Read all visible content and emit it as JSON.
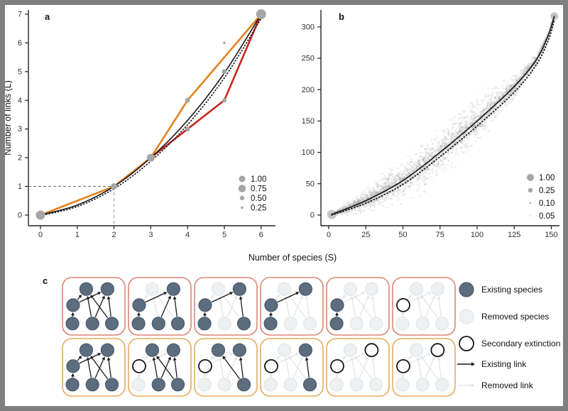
{
  "frame": {
    "border_color": "#7f7f7f",
    "background": "#ffffff"
  },
  "axes": {
    "shared_xlabel": "Number of species (S)"
  },
  "chart_data": [
    {
      "id": "a",
      "type": "line",
      "panel_label": "a",
      "xlabel": "Number of species (S)",
      "ylabel": "Number of links (L)",
      "xlim": [
        0,
        6.3
      ],
      "ylim": [
        0,
        7.2
      ],
      "xticks": [
        0,
        1,
        2,
        3,
        4,
        5,
        6
      ],
      "yticks": [
        0,
        1,
        2,
        3,
        4,
        5,
        6,
        7
      ],
      "grid": false,
      "legend_position": "bottom-right",
      "series": [
        {
          "name": "black-solid-curve",
          "style": "solid",
          "color": "#1b1b1b",
          "width": 1.6,
          "smooth": true,
          "points": [
            [
              0,
              0
            ],
            [
              1,
              0.35
            ],
            [
              2,
              1
            ],
            [
              3,
              2
            ],
            [
              4,
              3.3
            ],
            [
              5,
              4.95
            ],
            [
              6,
              7
            ]
          ]
        },
        {
          "name": "black-dotted-curve",
          "style": "dotted",
          "color": "#1b1b1b",
          "width": 1.8,
          "smooth": true,
          "points": [
            [
              0,
              -0.02
            ],
            [
              1,
              0.3
            ],
            [
              2,
              0.92
            ],
            [
              3,
              1.88
            ],
            [
              4,
              3.15
            ],
            [
              5,
              4.78
            ],
            [
              6,
              6.85
            ]
          ]
        },
        {
          "name": "orange-trajectory",
          "style": "solid",
          "color": "#e5821f",
          "width": 2.6,
          "smooth": false,
          "points": [
            [
              0,
              0
            ],
            [
              2,
              1
            ],
            [
              3,
              2
            ],
            [
              4,
              4
            ],
            [
              6,
              7
            ]
          ]
        },
        {
          "name": "red-trajectory",
          "style": "solid",
          "color": "#c9261d",
          "width": 2.6,
          "smooth": false,
          "points": [
            [
              3,
              2
            ],
            [
              4,
              3
            ],
            [
              5,
              4
            ],
            [
              6,
              7
            ]
          ]
        }
      ],
      "guides": [
        {
          "orientation": "horizontal",
          "from": [
            0,
            1
          ],
          "to": [
            2,
            1
          ]
        },
        {
          "orientation": "vertical",
          "from": [
            2,
            1
          ],
          "to": [
            2,
            0
          ]
        }
      ],
      "size_dots": {
        "color": "#a6a6a6",
        "points": [
          [
            0,
            0,
            13
          ],
          [
            2,
            1,
            9
          ],
          [
            3,
            2,
            11
          ],
          [
            4,
            3,
            7
          ],
          [
            4,
            4,
            7
          ],
          [
            5,
            4,
            6
          ],
          [
            5,
            5,
            7
          ],
          [
            5,
            6,
            3.5
          ],
          [
            6,
            7,
            14
          ]
        ]
      },
      "legend": {
        "dot_color": "#a6a6a6",
        "entries": [
          {
            "label": "1.00",
            "d": 9
          },
          {
            "label": "0.75",
            "d": 10.5
          },
          {
            "label": "0.50",
            "d": 6.5
          },
          {
            "label": "0.25",
            "d": 3.5
          }
        ]
      }
    },
    {
      "id": "b",
      "type": "scatter",
      "panel_label": "b",
      "xlabel": "Number of species (S)",
      "ylabel": "",
      "xlim": [
        0,
        155
      ],
      "ylim": [
        0,
        330
      ],
      "xticks": [
        0,
        25,
        50,
        75,
        100,
        125,
        150
      ],
      "yticks": [
        0,
        50,
        100,
        150,
        200,
        250,
        300
      ],
      "grid": false,
      "legend_position": "bottom-right",
      "series": [
        {
          "name": "black-solid-curve",
          "style": "solid",
          "color": "#1b1b1b",
          "width": 1.7,
          "smooth": true,
          "points": [
            [
              2,
              1
            ],
            [
              25,
              23
            ],
            [
              50,
              55
            ],
            [
              75,
              100
            ],
            [
              100,
              150
            ],
            [
              125,
              205
            ],
            [
              140,
              248
            ],
            [
              148,
              287
            ],
            [
              152,
              317
            ]
          ]
        },
        {
          "name": "black-dotted-curve",
          "style": "dotted",
          "color": "#1b1b1b",
          "width": 1.9,
          "smooth": true,
          "points": [
            [
              2,
              0
            ],
            [
              25,
              19
            ],
            [
              50,
              49
            ],
            [
              75,
              93
            ],
            [
              100,
              142
            ],
            [
              125,
              196
            ],
            [
              140,
              240
            ],
            [
              148,
              279
            ],
            [
              152,
              310
            ]
          ]
        }
      ],
      "cloud": {
        "description": "band of simulated extinction trajectories",
        "color": "#b9b9b9",
        "x_range": [
          2,
          152
        ],
        "max_half_width": 48
      },
      "endpoint_dots": {
        "color": "#c6c6c6",
        "points": [
          [
            2,
            1,
            13
          ],
          [
            152,
            317,
            11
          ]
        ]
      },
      "legend": {
        "dot_color": "#a6a6a6",
        "entries": [
          {
            "label": "1.00",
            "d": 10
          },
          {
            "label": "0.25",
            "d": 6.5
          },
          {
            "label": "0.10",
            "d": 2.5
          },
          {
            "label": "0.05",
            "d": 1.5
          }
        ]
      }
    }
  ],
  "panel_c": {
    "panel_label": "c",
    "node_ids": [
      "T1",
      "T2",
      "M",
      "B1",
      "B2",
      "B3"
    ],
    "links": [
      [
        "B1",
        "M"
      ],
      [
        "M",
        "T1"
      ],
      [
        "M",
        "T2"
      ],
      [
        "B2",
        "T1"
      ],
      [
        "B2",
        "T2"
      ],
      [
        "B3",
        "T1"
      ],
      [
        "B3",
        "T2"
      ]
    ],
    "rows": [
      {
        "border_color": "#dc8576",
        "boxes": [
          {
            "removed": [],
            "secondary": [],
            "active_links": [
              0,
              1,
              2,
              3,
              4,
              5,
              6
            ]
          },
          {
            "removed": [
              "T1"
            ],
            "secondary": [],
            "active_links": [
              0,
              2,
              4,
              6
            ]
          },
          {
            "removed": [
              "T1",
              "B2"
            ],
            "secondary": [],
            "active_links": [
              0,
              2,
              6
            ]
          },
          {
            "removed": [
              "T1",
              "B2",
              "B3"
            ],
            "secondary": [],
            "active_links": [
              0,
              2
            ]
          },
          {
            "removed": [
              "T1",
              "B2",
              "B3",
              "T2"
            ],
            "secondary": [],
            "active_links": [
              0
            ]
          },
          {
            "removed": [
              "T1",
              "B2",
              "B3",
              "T2",
              "B1"
            ],
            "secondary": [
              "M"
            ],
            "active_links": []
          }
        ]
      },
      {
        "border_color": "#e5ab5e",
        "boxes": [
          {
            "removed": [],
            "secondary": [],
            "active_links": [
              0,
              1,
              2,
              3,
              4,
              5,
              6
            ]
          },
          {
            "removed": [
              "B1"
            ],
            "secondary": [
              "M"
            ],
            "active_links": [
              3,
              4,
              5,
              6
            ]
          },
          {
            "removed": [
              "B1",
              "B2"
            ],
            "secondary": [
              "M"
            ],
            "active_links": [
              5,
              6
            ]
          },
          {
            "removed": [
              "B1",
              "B2",
              "T1"
            ],
            "secondary": [
              "M"
            ],
            "active_links": [
              6
            ]
          },
          {
            "removed": [
              "B1",
              "B2",
              "T1",
              "B3"
            ],
            "secondary": [
              "M",
              "T2"
            ],
            "active_links": []
          },
          {
            "removed": [
              "B1",
              "B2",
              "T1",
              "B3"
            ],
            "secondary": [
              "M",
              "T2"
            ],
            "active_links": []
          }
        ]
      }
    ],
    "styles": {
      "existing_fill": "#5b6d7e",
      "existing_stroke": "#49596a",
      "removed_fill": "#eef0f1",
      "removed_stroke": "#e2e5e7",
      "secondary_fill": "#ffffff",
      "secondary_stroke": "#161616",
      "link_existing": "#1a1a1a",
      "link_removed": "#e2e5e7"
    },
    "legend": [
      {
        "icon": "existing-species",
        "label": "Existing species"
      },
      {
        "icon": "removed-species",
        "label": "Removed species"
      },
      {
        "icon": "secondary-extinction",
        "label": "Secondary extinction"
      },
      {
        "icon": "existing-link",
        "label": "Existing link"
      },
      {
        "icon": "removed-link",
        "label": "Removed link"
      }
    ]
  }
}
